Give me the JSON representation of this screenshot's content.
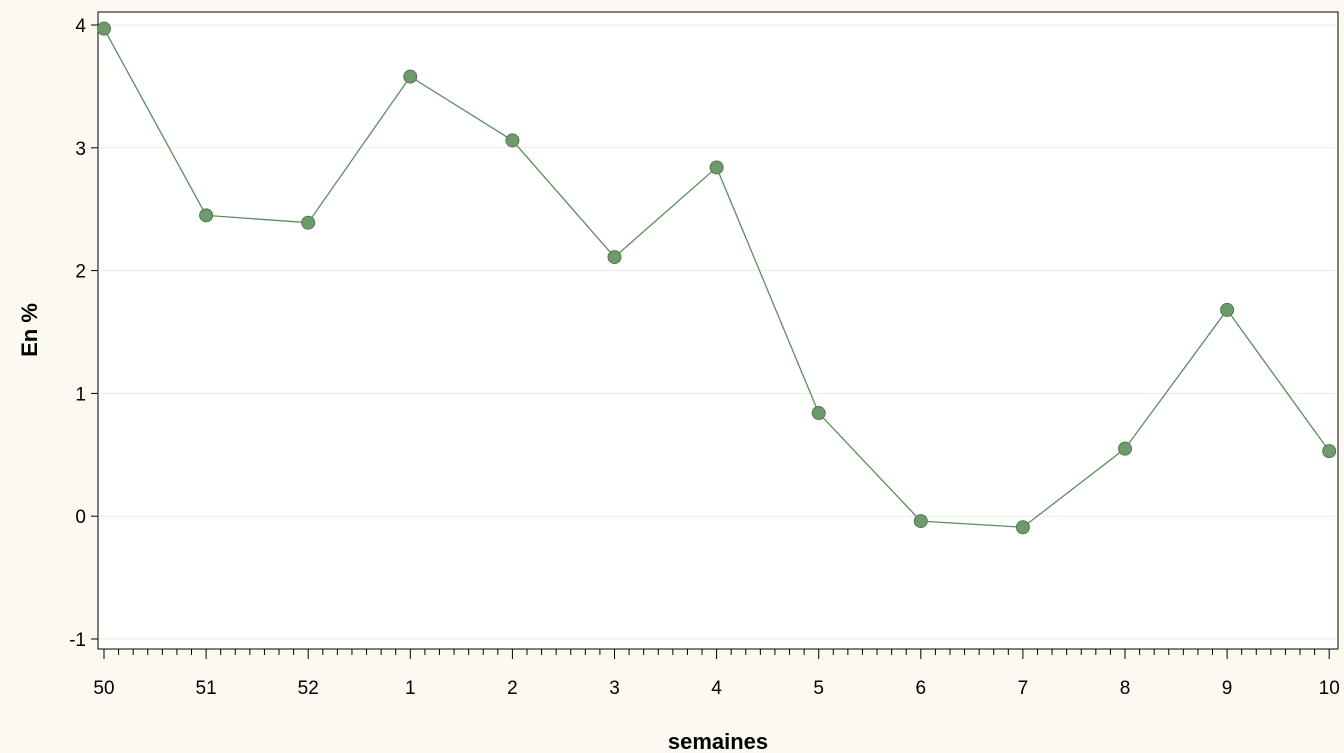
{
  "chart_data": {
    "type": "line",
    "title": "",
    "xlabel": "semaines",
    "ylabel": "En %",
    "categories": [
      "50",
      "51",
      "52",
      "1",
      "2",
      "3",
      "4",
      "5",
      "6",
      "7",
      "8",
      "9",
      "10"
    ],
    "series": [
      {
        "values": [
          3.97,
          2.45,
          2.39,
          3.58,
          3.06,
          2.11,
          2.84,
          0.84,
          -0.04,
          -0.09,
          0.55,
          1.68,
          0.53
        ]
      }
    ],
    "ylim": [
      -1,
      4
    ],
    "yticks": [
      -1,
      0,
      1,
      2,
      3,
      4
    ],
    "grid": true,
    "colors": {
      "line": "#5e8c5e",
      "marker": "#6e9a6e",
      "grid": "#ecebd9",
      "background": "#fcf9f1",
      "plot_background": "#ffffff"
    }
  }
}
